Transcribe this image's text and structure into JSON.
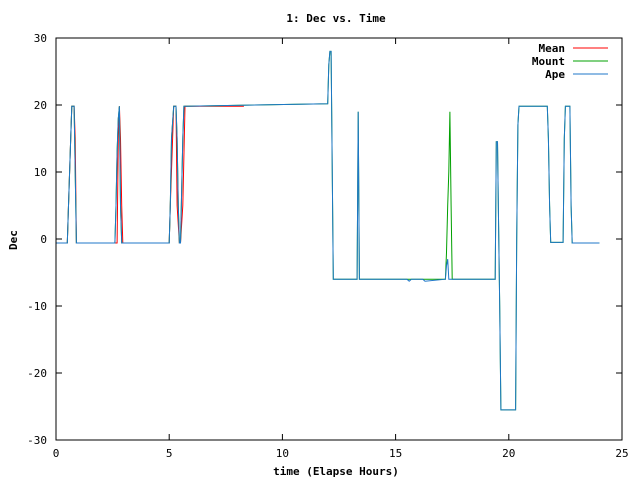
{
  "chart_data": {
    "type": "line",
    "title": "1: Dec vs. Time",
    "xlabel": "time (Elapse Hours)",
    "ylabel": "Dec",
    "xlim": [
      0,
      25
    ],
    "ylim": [
      -30,
      30
    ],
    "xticks": [
      0,
      5,
      10,
      15,
      20,
      25
    ],
    "yticks": [
      -30,
      -20,
      -10,
      0,
      10,
      20,
      30
    ],
    "grid": false,
    "legend": "top-right",
    "series": [
      {
        "name": "Mean",
        "color": "#ff0000",
        "x": [
          0,
          0.5,
          0.55,
          0.65,
          0.7,
          0.75,
          0.8,
          0.85,
          0.9,
          2.7,
          2.75,
          2.8,
          2.85,
          2.9,
          2.95,
          5.0,
          5.05,
          5.2,
          5.3,
          5.35,
          5.45,
          5.5,
          5.6,
          5.7,
          8.3
        ],
        "y": [
          -0.6,
          -0.6,
          5,
          15,
          19.8,
          19.8,
          19.8,
          15,
          -0.6,
          -0.6,
          15,
          19.8,
          15,
          5,
          -0.6,
          -0.6,
          5,
          19.8,
          19.8,
          5,
          -0.6,
          -0.6,
          5,
          19.8,
          19.8
        ]
      },
      {
        "name": "Mount",
        "color": "#00a000",
        "x": [
          0,
          0.5,
          0.55,
          0.6,
          0.65,
          0.7,
          0.75,
          0.8,
          0.85,
          0.9,
          2.6,
          2.65,
          2.7,
          2.75,
          2.8,
          2.85,
          2.9,
          5.0,
          5.05,
          5.1,
          5.2,
          5.3,
          5.35,
          5.4,
          5.45,
          5.5,
          5.6,
          5.65,
          5.7,
          5.75,
          12.0,
          12.05,
          12.1,
          12.15,
          12.2,
          12.25,
          12.3,
          12.35,
          13.3,
          13.35,
          13.4,
          13.45,
          17.2,
          17.25,
          17.3,
          17.35,
          17.4,
          17.45,
          17.5,
          17.55,
          19.4,
          19.45,
          19.5,
          19.55,
          19.6,
          19.65,
          19.7,
          19.75,
          20.3,
          20.35,
          20.4,
          20.45,
          20.5,
          20.55,
          20.6,
          20.65,
          21.7,
          21.75,
          21.8,
          21.85,
          21.9,
          21.95,
          22.0,
          22.4,
          22.45,
          22.5,
          22.6,
          22.7,
          22.75,
          22.8,
          22.85,
          24.0
        ],
        "y": [
          -0.6,
          -0.6,
          5,
          10,
          15,
          19.8,
          19.8,
          19.8,
          10,
          -0.6,
          -0.6,
          5,
          13,
          18,
          19.8,
          5,
          -0.6,
          -0.6,
          5,
          15,
          19.8,
          19.8,
          15,
          5,
          -0.6,
          -0.6,
          15,
          19.8,
          19.8,
          19.8,
          20.2,
          26,
          28,
          28,
          11,
          -6,
          -6,
          -6,
          -6,
          19,
          -6,
          -6,
          -6,
          -2,
          5,
          10,
          19,
          5,
          -6,
          -6,
          -6,
          14.5,
          14.5,
          2,
          -10,
          -25.5,
          -25.5,
          -25.5,
          -25.5,
          0,
          17,
          19.8,
          19.8,
          19.8,
          19.8,
          19.8,
          19.8,
          15,
          5,
          -0.5,
          -0.5,
          -0.5,
          -0.5,
          -0.5,
          15,
          19.8,
          19.8,
          19.8,
          5,
          -0.6,
          -0.6,
          -0.6
        ]
      },
      {
        "name": "Ape",
        "color": "#1f77c8",
        "x": [
          0,
          0.5,
          0.55,
          0.6,
          0.65,
          0.7,
          0.75,
          0.8,
          0.85,
          0.9,
          2.6,
          2.65,
          2.7,
          2.75,
          2.8,
          2.85,
          2.9,
          5.0,
          5.05,
          5.1,
          5.2,
          5.3,
          5.35,
          5.4,
          5.45,
          5.5,
          5.6,
          5.65,
          5.7,
          5.75,
          12.0,
          12.05,
          12.1,
          12.15,
          12.2,
          12.25,
          12.3,
          12.35,
          13.3,
          13.35,
          13.4,
          13.45,
          15.5,
          15.6,
          15.7,
          16.2,
          16.3,
          17.2,
          17.25,
          17.3,
          17.35,
          17.4,
          17.45,
          17.5,
          17.55,
          19.4,
          19.45,
          19.5,
          19.55,
          19.6,
          19.65,
          19.7,
          19.75,
          20.3,
          20.35,
          20.4,
          20.45,
          20.5,
          20.55,
          20.6,
          20.65,
          21.7,
          21.75,
          21.8,
          21.85,
          21.9,
          21.95,
          22.0,
          22.4,
          22.45,
          22.5,
          22.6,
          22.7,
          22.75,
          22.8,
          22.85,
          24.0
        ],
        "y": [
          -0.6,
          -0.6,
          5,
          10,
          15,
          19.8,
          19.8,
          19.8,
          10,
          -0.6,
          -0.6,
          5,
          13,
          18,
          19.8,
          5,
          -0.6,
          -0.6,
          5,
          15,
          19.8,
          19.8,
          15,
          5,
          -0.6,
          -0.6,
          15,
          19.8,
          19.8,
          19.8,
          20.2,
          26,
          28,
          28,
          11,
          -6,
          -6,
          -6,
          -6,
          19,
          -6,
          -6,
          -6,
          -6.3,
          -6,
          -6,
          -6.3,
          -6,
          -4,
          -3,
          -6,
          -6,
          -6,
          -6,
          -6,
          -6,
          14.5,
          14.5,
          2,
          -10,
          -25.5,
          -25.5,
          -25.5,
          -25.5,
          0,
          17,
          19.8,
          19.8,
          19.8,
          19.8,
          19.8,
          19.8,
          15,
          5,
          -0.5,
          -0.5,
          -0.5,
          -0.5,
          -0.5,
          15,
          19.8,
          19.8,
          19.8,
          5,
          -0.6,
          -0.6,
          -0.6
        ]
      }
    ]
  }
}
